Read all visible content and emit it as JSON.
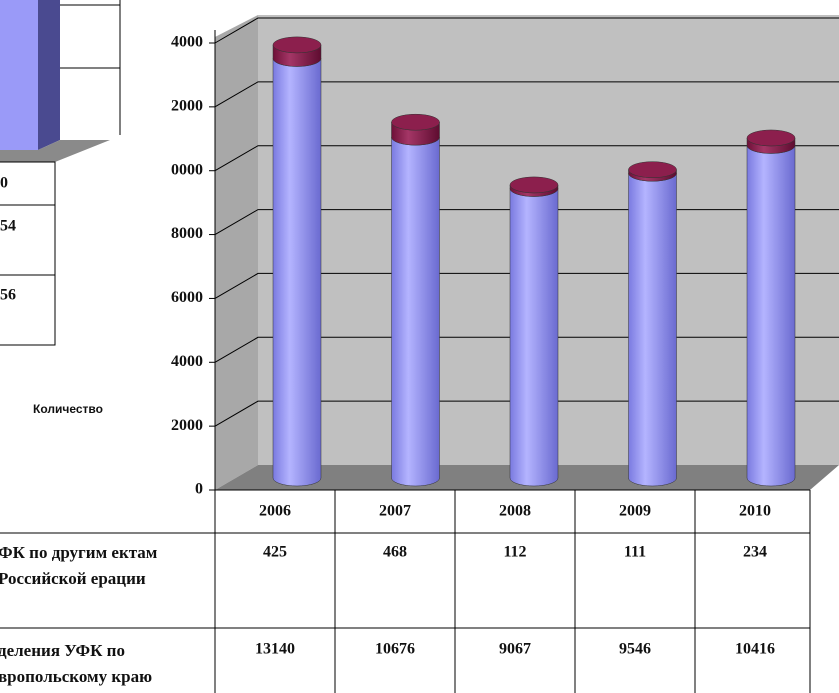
{
  "chart_data": {
    "type": "bar3d-stacked",
    "categories": [
      "2006",
      "2007",
      "2008",
      "2009",
      "2010"
    ],
    "series": [
      {
        "name": "деления УФК по вропольскому краю",
        "color": "#9a9af8",
        "values": [
          13140,
          10676,
          9067,
          9546,
          10416
        ]
      },
      {
        "name": "ФК по другим ектам Российской ерации",
        "color": "#8c1f4d",
        "values": [
          425,
          468,
          112,
          111,
          234
        ]
      }
    ],
    "ylim": [
      0,
      14000
    ],
    "yticks": [
      0,
      2000,
      {
        "value": 4000,
        "label": "4000"
      },
      6000,
      8000,
      {
        "value": 10000,
        "label": "0000"
      },
      {
        "value": 12000,
        "label": "2000"
      },
      {
        "value": 14000,
        "label": "4000"
      }
    ],
    "grid": true,
    "side_chart": {
      "axis_label": "Количество",
      "table_values": [
        "0",
        "54",
        "56"
      ]
    }
  }
}
